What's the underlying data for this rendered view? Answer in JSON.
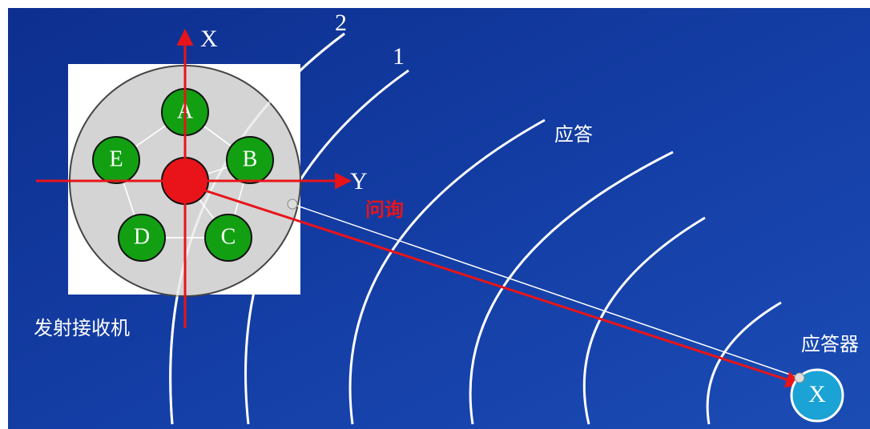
{
  "axes": {
    "x": "X",
    "y": "Y"
  },
  "arcs": [
    {
      "label": "2"
    },
    {
      "label": "1"
    }
  ],
  "reply_label": "应答",
  "query_label": "问询",
  "transceiver": {
    "label": "发射接收机",
    "nodes": [
      {
        "label": "A"
      },
      {
        "label": "B"
      },
      {
        "label": "C"
      },
      {
        "label": "D"
      },
      {
        "label": "E"
      }
    ]
  },
  "transponder": {
    "label": "应答器",
    "symbol": "X"
  }
}
